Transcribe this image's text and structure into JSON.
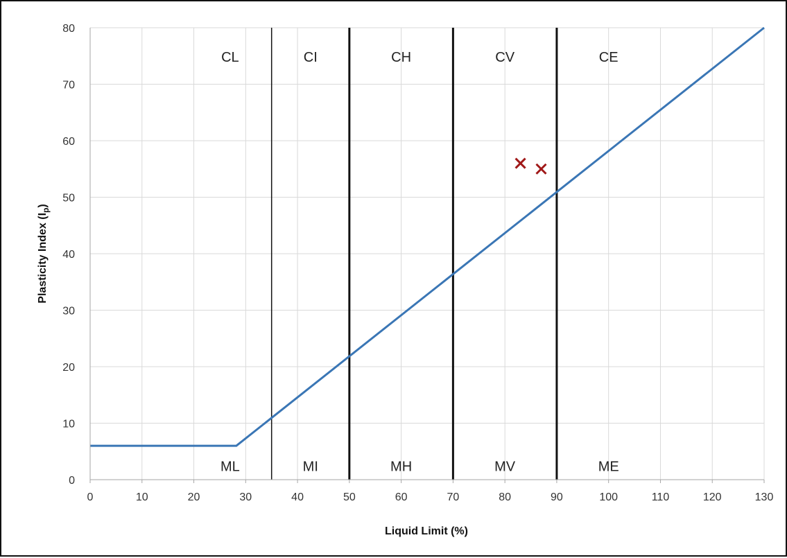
{
  "chart_data": {
    "type": "line",
    "xlabel": "Liquid Limit (%)",
    "ylabel_main": "Plasticity Index (I",
    "ylabel_sub": "p",
    "ylabel_close": ")",
    "xlim": [
      0,
      130
    ],
    "ylim": [
      0,
      80
    ],
    "xticks": [
      0,
      10,
      20,
      30,
      40,
      50,
      60,
      70,
      80,
      90,
      100,
      110,
      120,
      130
    ],
    "yticks": [
      0,
      10,
      20,
      30,
      40,
      50,
      60,
      70,
      80
    ],
    "grid": true,
    "a_line": {
      "color": "#3a76b5",
      "points": [
        [
          0,
          6
        ],
        [
          28.2,
          6
        ],
        [
          130,
          80
        ]
      ]
    },
    "boundaries": [
      {
        "x": 35,
        "weight": "thin"
      },
      {
        "x": 50,
        "weight": "thick"
      },
      {
        "x": 70,
        "weight": "thick"
      },
      {
        "x": 90,
        "weight": "thick"
      }
    ],
    "upper_zone_labels": [
      {
        "text": "CL",
        "x": 27
      },
      {
        "text": "CI",
        "x": 42.5
      },
      {
        "text": "CH",
        "x": 60
      },
      {
        "text": "CV",
        "x": 80
      },
      {
        "text": "CE",
        "x": 100
      }
    ],
    "lower_zone_labels": [
      {
        "text": "ML",
        "x": 27
      },
      {
        "text": "MI",
        "x": 42.5
      },
      {
        "text": "MH",
        "x": 60
      },
      {
        "text": "MV",
        "x": 80
      },
      {
        "text": "ME",
        "x": 100
      }
    ],
    "upper_label_y": 75,
    "lower_label_y": 2.5,
    "samples": {
      "color": "#a01818",
      "points": [
        [
          83,
          56
        ],
        [
          87,
          55
        ]
      ]
    }
  }
}
